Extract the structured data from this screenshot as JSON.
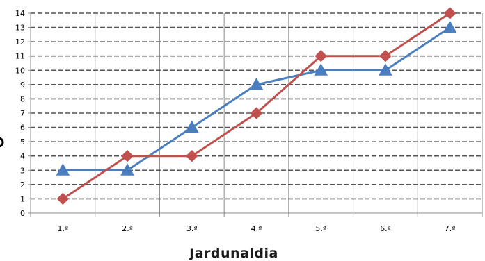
{
  "chart_data": {
    "type": "line",
    "categories": [
      "1.ª",
      "2.ª",
      "3.ª",
      "4.ª",
      "5.ª",
      "6.ª",
      "7.ª"
    ],
    "series": [
      {
        "values": [
          3,
          3,
          6,
          9,
          10,
          10,
          13
        ],
        "color": "#4a7ebf",
        "marker": "triangle"
      },
      {
        "values": [
          1,
          4,
          4,
          7,
          11,
          11,
          14
        ],
        "color": "#c0504d",
        "marker": "diamond"
      }
    ],
    "yticks": [
      "0",
      "1",
      "2",
      "3",
      "4",
      "5",
      "6",
      "7",
      "8",
      "9",
      "10",
      "11",
      "12",
      "13",
      "14"
    ],
    "ylim": [
      0,
      14
    ],
    "xlabel": "Jardunaldia",
    "ylabel": "",
    "title": "",
    "grid": true,
    "legend": "none"
  }
}
